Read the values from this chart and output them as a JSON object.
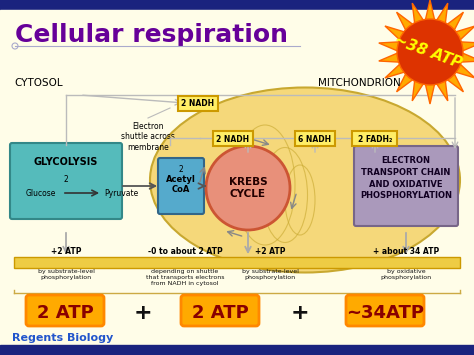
{
  "bg_color": "#fffde8",
  "title": "Cellular respiration",
  "title_color": "#660099",
  "title_fontsize": 18,
  "subtitle": "Regents Biology",
  "subtitle_color": "#2255cc",
  "subtitle_fontsize": 8,
  "top_bar_color": "#1a237e",
  "cytosol_label": "CYTOSOL",
  "mitochondrion_label": "MITCHONDRION",
  "mito_fill": "#f5d87a",
  "mito_outline": "#c8a830",
  "glycolysis_fill": "#55bbbb",
  "acetyl_fill": "#55aacc",
  "krebs_fill": "#e8907a",
  "etc_fill": "#aa99bb",
  "nadh_box_fill": "#ffee66",
  "nadh_box_color": "#cc9900",
  "arrow_color": "#aaaaaa",
  "line_color": "#bbbbbb",
  "atp_bar_fill": "#eecc44",
  "atp_bar_outline": "#cc9900",
  "atp_box_fill": "#ffaa00",
  "atp_box_color": "#ff8800",
  "atp_box_labels": [
    "2 ATP",
    "2 ATP",
    "~34ATP"
  ],
  "atp_labels": [
    "+2 ATP",
    "-0 to about 2 ATP",
    "+2 ATP",
    "+ about 34 ATP"
  ],
  "atp_sublabels": [
    "by substrate-level\nphosphorylation",
    "depending on shuttle\nthat transports electrons\nfrom NADH in cytosol",
    "by substrate-level\nphosphorylation",
    "by oxidative\nphosphorylation"
  ],
  "starburst_text": "~38 ATP",
  "starburst_fill": "#dd3300",
  "starburst_ray_fill": "#ffaa00",
  "electron_shuttle_text": "Electron\nshuttle across\nmembrane"
}
